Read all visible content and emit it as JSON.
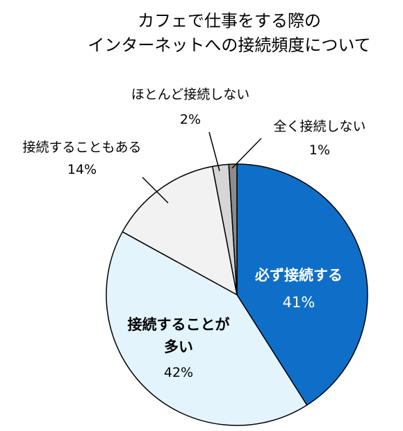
{
  "chart_data": {
    "type": "pie",
    "title_lines": [
      "カフェで仕事をする際の",
      "インターネットへの接続頻度について"
    ],
    "slices": [
      {
        "label": "必ず接続する",
        "value": 41,
        "percent_label": "41%",
        "color": "#0f6fc8",
        "text_color": "#ffffff"
      },
      {
        "label_lines": [
          "接続することが",
          "多い"
        ],
        "value": 42,
        "percent_label": "42%",
        "color": "#e3f4fc",
        "text_color": "#000000"
      },
      {
        "label": "接続することもある",
        "value": 14,
        "percent_label": "14%",
        "color": "#f2f2f2",
        "text_color": "#000000"
      },
      {
        "label": "ほとんど接続しない",
        "value": 2,
        "percent_label": "2%",
        "color": "#d6d6d6",
        "text_color": "#000000"
      },
      {
        "label": "全く接続しない",
        "value": 1,
        "percent_label": "1%",
        "color": "#8c8c8c",
        "text_color": "#000000"
      }
    ]
  }
}
